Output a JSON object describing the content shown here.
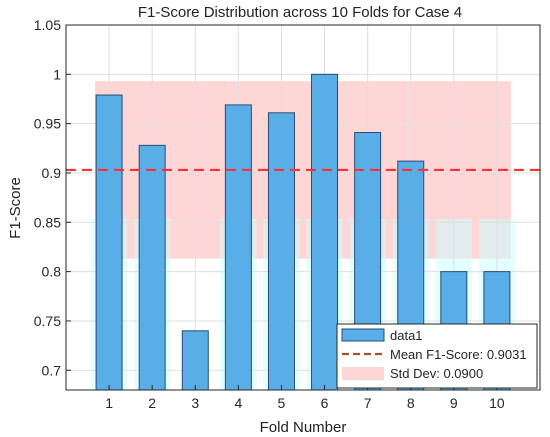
{
  "chart_data": {
    "type": "bar",
    "title": "F1-Score Distribution across 10 Folds for Case 4",
    "xlabel": "Fold Number",
    "ylabel": "F1-Score",
    "categories": [
      "1",
      "2",
      "3",
      "4",
      "5",
      "6",
      "7",
      "8",
      "9",
      "10"
    ],
    "series": [
      {
        "name": "data1",
        "values": [
          0.979,
          0.928,
          0.74,
          0.969,
          0.961,
          1.0,
          0.941,
          0.912,
          0.8,
          0.8
        ]
      }
    ],
    "mean": {
      "label": "Mean F1-Score: 0.9031",
      "value": 0.9031
    },
    "std_band": {
      "label": "Std Dev: 0.0900",
      "lower": 0.8131,
      "upper": 0.9931
    },
    "ylim": [
      0.68,
      1.05
    ],
    "yticks": [
      0.7,
      0.75,
      0.8,
      0.85,
      0.9,
      0.95,
      1,
      1.05
    ],
    "ytick_labels": [
      "0.7",
      "0.75",
      "0.8",
      "0.85",
      "0.9",
      "0.95",
      "1",
      "1.05"
    ],
    "grid": true,
    "legend_position": "bottom-right",
    "colors": {
      "bar_fill": "#5aaee8",
      "bar_edge": "#2b4a73",
      "mean_line": "#ff3333",
      "std_band": "#ffd6d6",
      "legend_mean_line": "#a0522d",
      "glow": "#ccffff"
    }
  }
}
